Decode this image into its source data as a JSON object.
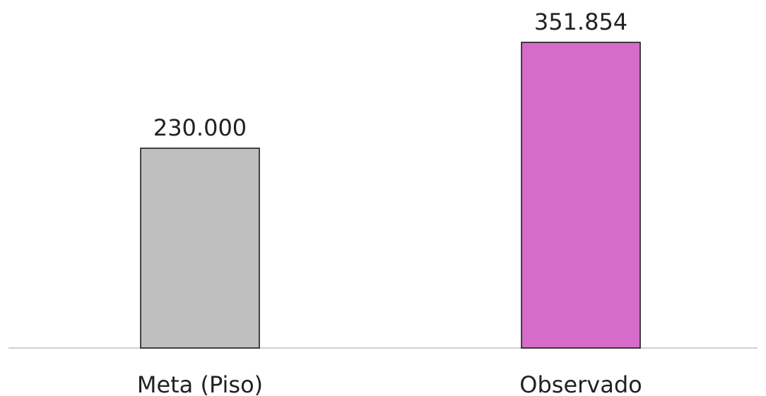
{
  "chart_data": {
    "type": "bar",
    "categories": [
      "Meta (Piso)",
      "Observado"
    ],
    "values": [
      230000,
      351854
    ],
    "value_labels": [
      "230.000",
      "351.854"
    ],
    "bar_colors": [
      "#bfbfbf",
      "#d56cc9"
    ],
    "bar_edge_color": "#111111",
    "baseline_color": "#d0d0d0",
    "ylim": [
      0,
      400000
    ],
    "grid": false,
    "legend": "none",
    "title": "",
    "xlabel": "",
    "ylabel": ""
  }
}
